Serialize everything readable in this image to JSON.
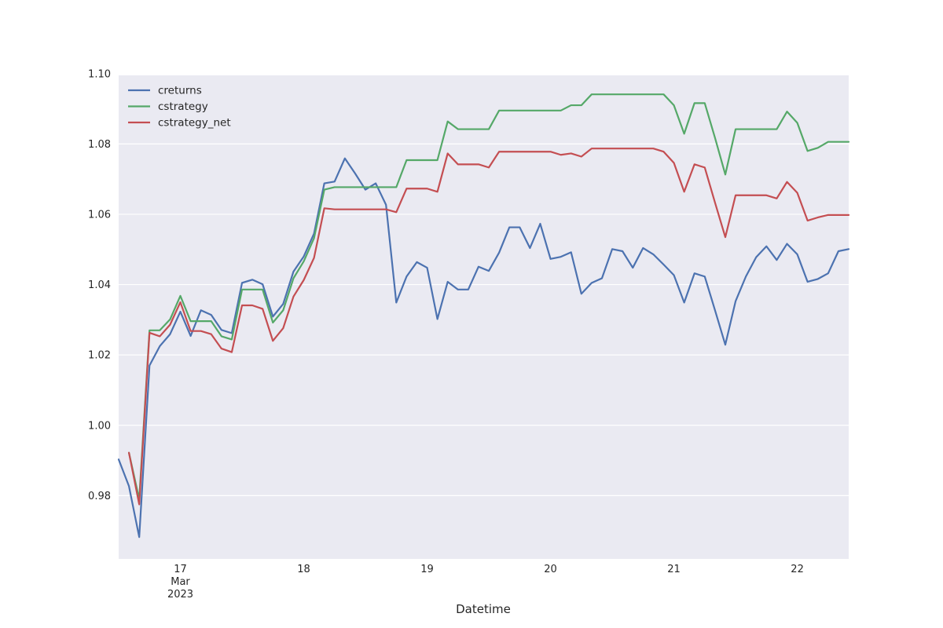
{
  "chart_data": {
    "type": "line",
    "title": "",
    "xlabel": "Datetime",
    "ylabel": "",
    "ylim": [
      0.962,
      1.0995
    ],
    "xlim": [
      "2023-03-16T12:00",
      "2023-03-22T10:00"
    ],
    "grid": true,
    "legend": "top-left",
    "y_ticks": [
      "0.98",
      "1.00",
      "1.02",
      "1.04",
      "1.06",
      "1.08",
      "1.10"
    ],
    "x_ticks": [
      {
        "x": "2023-03-17T00:00",
        "lines": [
          "17",
          "Mar",
          "2023"
        ]
      },
      {
        "x": "2023-03-18T00:00",
        "lines": [
          "18"
        ]
      },
      {
        "x": "2023-03-19T00:00",
        "lines": [
          "19"
        ]
      },
      {
        "x": "2023-03-20T00:00",
        "lines": [
          "20"
        ]
      },
      {
        "x": "2023-03-21T00:00",
        "lines": [
          "21"
        ]
      },
      {
        "x": "2023-03-22T00:00",
        "lines": [
          "22"
        ]
      }
    ],
    "series": [
      {
        "name": "creturns",
        "color": "#4c72b0",
        "points": [
          [
            "2023-03-16T12:00",
            0.9903
          ],
          [
            "2023-03-16T14:00",
            0.9827
          ],
          [
            "2023-03-16T16:00",
            0.9682
          ],
          [
            "2023-03-16T18:00",
            1.017
          ],
          [
            "2023-03-16T20:00",
            1.0225
          ],
          [
            "2023-03-16T22:00",
            1.0259
          ],
          [
            "2023-03-17T00:00",
            1.0323
          ],
          [
            "2023-03-17T02:00",
            1.0254
          ],
          [
            "2023-03-17T04:00",
            1.0327
          ],
          [
            "2023-03-17T06:00",
            1.0314
          ],
          [
            "2023-03-17T08:00",
            1.0271
          ],
          [
            "2023-03-17T10:00",
            1.0262
          ],
          [
            "2023-03-17T12:00",
            1.0405
          ],
          [
            "2023-03-17T14:00",
            1.0414
          ],
          [
            "2023-03-17T16:00",
            1.0401
          ],
          [
            "2023-03-17T18:00",
            1.0309
          ],
          [
            "2023-03-17T20:00",
            1.0345
          ],
          [
            "2023-03-17T22:00",
            1.0437
          ],
          [
            "2023-03-18T00:00",
            1.048
          ],
          [
            "2023-03-18T02:00",
            1.0545
          ],
          [
            "2023-03-18T04:00",
            1.0688
          ],
          [
            "2023-03-18T06:00",
            1.0693
          ],
          [
            "2023-03-18T08:00",
            1.0759
          ],
          [
            "2023-03-18T10:00",
            1.0716
          ],
          [
            "2023-03-18T12:00",
            1.067
          ],
          [
            "2023-03-18T14:00",
            1.0688
          ],
          [
            "2023-03-18T16:00",
            1.0627
          ],
          [
            "2023-03-18T18:00",
            1.0349
          ],
          [
            "2023-03-18T20:00",
            1.0423
          ],
          [
            "2023-03-18T22:00",
            1.0464
          ],
          [
            "2023-03-19T00:00",
            1.0448
          ],
          [
            "2023-03-19T02:00",
            1.0302
          ],
          [
            "2023-03-19T04:00",
            1.0408
          ],
          [
            "2023-03-19T06:00",
            1.0386
          ],
          [
            "2023-03-19T08:00",
            1.0386
          ],
          [
            "2023-03-19T10:00",
            1.0451
          ],
          [
            "2023-03-19T12:00",
            1.0439
          ],
          [
            "2023-03-19T14:00",
            1.0491
          ],
          [
            "2023-03-19T16:00",
            1.0563
          ],
          [
            "2023-03-19T18:00",
            1.0563
          ],
          [
            "2023-03-19T20:00",
            1.0504
          ],
          [
            "2023-03-19T22:00",
            1.0573
          ],
          [
            "2023-03-20T00:00",
            1.0473
          ],
          [
            "2023-03-20T02:00",
            1.0479
          ],
          [
            "2023-03-20T04:00",
            1.0492
          ],
          [
            "2023-03-20T06:00",
            1.0374
          ],
          [
            "2023-03-20T08:00",
            1.0405
          ],
          [
            "2023-03-20T10:00",
            1.0418
          ],
          [
            "2023-03-20T12:00",
            1.0501
          ],
          [
            "2023-03-20T14:00",
            1.0495
          ],
          [
            "2023-03-20T16:00",
            1.0448
          ],
          [
            "2023-03-20T18:00",
            1.0504
          ],
          [
            "2023-03-20T20:00",
            1.0486
          ],
          [
            "2023-03-20T22:00",
            1.0457
          ],
          [
            "2023-03-21T00:00",
            1.0427
          ],
          [
            "2023-03-21T02:00",
            1.0349
          ],
          [
            "2023-03-21T04:00",
            1.0432
          ],
          [
            "2023-03-21T06:00",
            1.0423
          ],
          [
            "2023-03-21T08:00",
            1.0327
          ],
          [
            "2023-03-21T10:00",
            1.0229
          ],
          [
            "2023-03-21T12:00",
            1.0353
          ],
          [
            "2023-03-21T14:00",
            1.0423
          ],
          [
            "2023-03-21T16:00",
            1.0478
          ],
          [
            "2023-03-21T18:00",
            1.0509
          ],
          [
            "2023-03-21T20:00",
            1.047
          ],
          [
            "2023-03-21T22:00",
            1.0516
          ],
          [
            "2023-03-22T00:00",
            1.0486
          ],
          [
            "2023-03-22T02:00",
            1.0408
          ],
          [
            "2023-03-22T04:00",
            1.0416
          ],
          [
            "2023-03-22T06:00",
            1.0432
          ],
          [
            "2023-03-22T08:00",
            1.0495
          ],
          [
            "2023-03-22T10:00",
            1.0501
          ]
        ]
      },
      {
        "name": "cstrategy",
        "color": "#55a868",
        "points": [
          [
            "2023-03-16T14:00",
            0.9922
          ],
          [
            "2023-03-16T16:00",
            0.979
          ],
          [
            "2023-03-16T18:00",
            1.027
          ],
          [
            "2023-03-16T20:00",
            1.027
          ],
          [
            "2023-03-16T22:00",
            1.0301
          ],
          [
            "2023-03-17T00:00",
            1.0368
          ],
          [
            "2023-03-17T02:00",
            1.0296
          ],
          [
            "2023-03-17T04:00",
            1.0296
          ],
          [
            "2023-03-17T06:00",
            1.0296
          ],
          [
            "2023-03-17T08:00",
            1.0253
          ],
          [
            "2023-03-17T10:00",
            1.0244
          ],
          [
            "2023-03-17T12:00",
            1.0386
          ],
          [
            "2023-03-17T14:00",
            1.0386
          ],
          [
            "2023-03-17T16:00",
            1.0386
          ],
          [
            "2023-03-17T18:00",
            1.0292
          ],
          [
            "2023-03-17T20:00",
            1.0327
          ],
          [
            "2023-03-17T22:00",
            1.0418
          ],
          [
            "2023-03-18T00:00",
            1.0466
          ],
          [
            "2023-03-18T02:00",
            1.0532
          ],
          [
            "2023-03-18T04:00",
            1.067
          ],
          [
            "2023-03-18T06:00",
            1.0677
          ],
          [
            "2023-03-18T08:00",
            1.0677
          ],
          [
            "2023-03-18T10:00",
            1.0677
          ],
          [
            "2023-03-18T12:00",
            1.0677
          ],
          [
            "2023-03-18T14:00",
            1.0677
          ],
          [
            "2023-03-18T16:00",
            1.0677
          ],
          [
            "2023-03-18T18:00",
            1.0677
          ],
          [
            "2023-03-18T20:00",
            1.0754
          ],
          [
            "2023-03-18T22:00",
            1.0754
          ],
          [
            "2023-03-19T00:00",
            1.0754
          ],
          [
            "2023-03-19T02:00",
            1.0754
          ],
          [
            "2023-03-19T04:00",
            1.0864
          ],
          [
            "2023-03-19T06:00",
            1.0842
          ],
          [
            "2023-03-19T08:00",
            1.0842
          ],
          [
            "2023-03-19T10:00",
            1.0842
          ],
          [
            "2023-03-19T12:00",
            1.0842
          ],
          [
            "2023-03-19T14:00",
            1.0895
          ],
          [
            "2023-03-19T16:00",
            1.0895
          ],
          [
            "2023-03-19T18:00",
            1.0895
          ],
          [
            "2023-03-19T20:00",
            1.0895
          ],
          [
            "2023-03-19T22:00",
            1.0895
          ],
          [
            "2023-03-20T00:00",
            1.0895
          ],
          [
            "2023-03-20T02:00",
            1.0895
          ],
          [
            "2023-03-20T04:00",
            1.091
          ],
          [
            "2023-03-20T06:00",
            1.091
          ],
          [
            "2023-03-20T08:00",
            1.0941
          ],
          [
            "2023-03-20T10:00",
            1.0941
          ],
          [
            "2023-03-20T12:00",
            1.0941
          ],
          [
            "2023-03-20T14:00",
            1.0941
          ],
          [
            "2023-03-20T16:00",
            1.0941
          ],
          [
            "2023-03-20T18:00",
            1.0941
          ],
          [
            "2023-03-20T20:00",
            1.0941
          ],
          [
            "2023-03-20T22:00",
            1.0941
          ],
          [
            "2023-03-21T00:00",
            1.091
          ],
          [
            "2023-03-21T02:00",
            1.0829
          ],
          [
            "2023-03-21T04:00",
            1.0916
          ],
          [
            "2023-03-21T06:00",
            1.0916
          ],
          [
            "2023-03-21T08:00",
            1.0817
          ],
          [
            "2023-03-21T10:00",
            1.0713
          ],
          [
            "2023-03-21T12:00",
            1.0842
          ],
          [
            "2023-03-21T14:00",
            1.0842
          ],
          [
            "2023-03-21T16:00",
            1.0842
          ],
          [
            "2023-03-21T18:00",
            1.0842
          ],
          [
            "2023-03-21T20:00",
            1.0842
          ],
          [
            "2023-03-21T22:00",
            1.0892
          ],
          [
            "2023-03-22T00:00",
            1.086
          ],
          [
            "2023-03-22T02:00",
            1.078
          ],
          [
            "2023-03-22T04:00",
            1.0789
          ],
          [
            "2023-03-22T06:00",
            1.0806
          ],
          [
            "2023-03-22T08:00",
            1.0806
          ],
          [
            "2023-03-22T10:00",
            1.0806
          ]
        ]
      },
      {
        "name": "cstrategy_net",
        "color": "#c44e52",
        "points": [
          [
            "2023-03-16T14:00",
            0.9922
          ],
          [
            "2023-03-16T16:00",
            0.9775
          ],
          [
            "2023-03-16T18:00",
            1.0263
          ],
          [
            "2023-03-16T20:00",
            1.0253
          ],
          [
            "2023-03-16T22:00",
            1.0286
          ],
          [
            "2023-03-17T00:00",
            1.035
          ],
          [
            "2023-03-17T02:00",
            1.0268
          ],
          [
            "2023-03-17T04:00",
            1.0268
          ],
          [
            "2023-03-17T06:00",
            1.0259
          ],
          [
            "2023-03-17T08:00",
            1.0218
          ],
          [
            "2023-03-17T10:00",
            1.0208
          ],
          [
            "2023-03-17T12:00",
            1.0341
          ],
          [
            "2023-03-17T14:00",
            1.0341
          ],
          [
            "2023-03-17T16:00",
            1.0331
          ],
          [
            "2023-03-17T18:00",
            1.024
          ],
          [
            "2023-03-17T20:00",
            1.0276
          ],
          [
            "2023-03-17T22:00",
            1.0366
          ],
          [
            "2023-03-18T00:00",
            1.0413
          ],
          [
            "2023-03-18T02:00",
            1.0476
          ],
          [
            "2023-03-18T04:00",
            1.0617
          ],
          [
            "2023-03-18T06:00",
            1.0614
          ],
          [
            "2023-03-18T08:00",
            1.0614
          ],
          [
            "2023-03-18T10:00",
            1.0614
          ],
          [
            "2023-03-18T12:00",
            1.0614
          ],
          [
            "2023-03-18T14:00",
            1.0614
          ],
          [
            "2023-03-18T16:00",
            1.0614
          ],
          [
            "2023-03-18T18:00",
            1.0606
          ],
          [
            "2023-03-18T20:00",
            1.0673
          ],
          [
            "2023-03-18T22:00",
            1.0673
          ],
          [
            "2023-03-19T00:00",
            1.0673
          ],
          [
            "2023-03-19T02:00",
            1.0664
          ],
          [
            "2023-03-19T04:00",
            1.0773
          ],
          [
            "2023-03-19T06:00",
            1.0742
          ],
          [
            "2023-03-19T08:00",
            1.0742
          ],
          [
            "2023-03-19T10:00",
            1.0742
          ],
          [
            "2023-03-19T12:00",
            1.0733
          ],
          [
            "2023-03-19T14:00",
            1.0778
          ],
          [
            "2023-03-19T16:00",
            1.0778
          ],
          [
            "2023-03-19T18:00",
            1.0778
          ],
          [
            "2023-03-19T20:00",
            1.0778
          ],
          [
            "2023-03-19T22:00",
            1.0778
          ],
          [
            "2023-03-20T00:00",
            1.0778
          ],
          [
            "2023-03-20T02:00",
            1.0769
          ],
          [
            "2023-03-20T04:00",
            1.0773
          ],
          [
            "2023-03-20T06:00",
            1.0764
          ],
          [
            "2023-03-20T08:00",
            1.0787
          ],
          [
            "2023-03-20T10:00",
            1.0787
          ],
          [
            "2023-03-20T12:00",
            1.0787
          ],
          [
            "2023-03-20T14:00",
            1.0787
          ],
          [
            "2023-03-20T16:00",
            1.0787
          ],
          [
            "2023-03-20T18:00",
            1.0787
          ],
          [
            "2023-03-20T20:00",
            1.0787
          ],
          [
            "2023-03-20T22:00",
            1.0778
          ],
          [
            "2023-03-21T00:00",
            1.0746
          ],
          [
            "2023-03-21T02:00",
            1.0664
          ],
          [
            "2023-03-21T04:00",
            1.0742
          ],
          [
            "2023-03-21T06:00",
            1.0733
          ],
          [
            "2023-03-21T08:00",
            1.0633
          ],
          [
            "2023-03-21T10:00",
            1.0535
          ],
          [
            "2023-03-21T12:00",
            1.0654
          ],
          [
            "2023-03-21T14:00",
            1.0654
          ],
          [
            "2023-03-21T16:00",
            1.0654
          ],
          [
            "2023-03-21T18:00",
            1.0654
          ],
          [
            "2023-03-21T20:00",
            1.0645
          ],
          [
            "2023-03-21T22:00",
            1.0692
          ],
          [
            "2023-03-22T00:00",
            1.0661
          ],
          [
            "2023-03-22T02:00",
            1.0582
          ],
          [
            "2023-03-22T04:00",
            1.0591
          ],
          [
            "2023-03-22T06:00",
            1.0598
          ],
          [
            "2023-03-22T08:00",
            1.0598
          ],
          [
            "2023-03-22T10:00",
            1.0598
          ]
        ]
      }
    ]
  },
  "style": {
    "plot_background": "#eaeaf2",
    "grid_color": "#ffffff",
    "text_color": "#262626"
  }
}
